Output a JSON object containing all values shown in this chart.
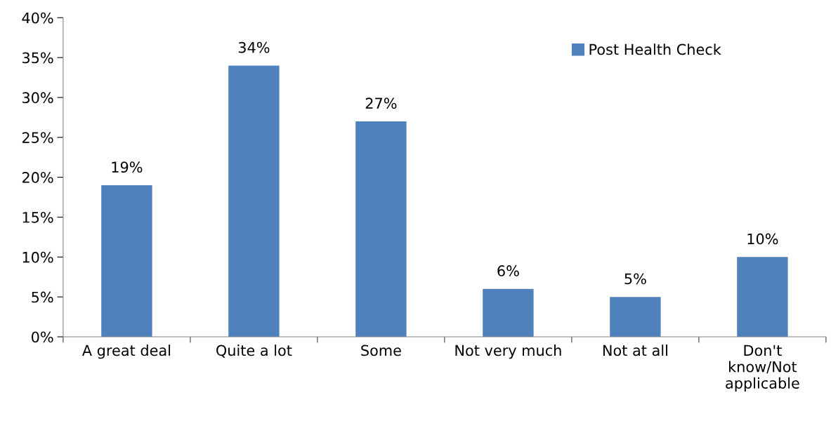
{
  "chart_data": {
    "type": "bar",
    "categories": [
      "A great deal",
      "Quite a lot",
      "Some",
      "Not very much",
      "Not at all",
      "Don't\nknow/Not\napplicable"
    ],
    "series": [
      {
        "name": "Post Health Check",
        "color": "#4f81bd",
        "values": [
          19,
          34,
          27,
          6,
          5,
          10
        ],
        "value_labels": [
          "19%",
          "34%",
          "27%",
          "6%",
          "5%",
          "10%"
        ]
      }
    ],
    "ylim": [
      0,
      40
    ],
    "yticks": [
      {
        "value": 0,
        "label": "0%"
      },
      {
        "value": 5,
        "label": "5%"
      },
      {
        "value": 10,
        "label": "10%"
      },
      {
        "value": 15,
        "label": "15%"
      },
      {
        "value": 20,
        "label": "20%"
      },
      {
        "value": 25,
        "label": "25%"
      },
      {
        "value": 30,
        "label": "30%"
      },
      {
        "value": 35,
        "label": "35%"
      },
      {
        "value": 40,
        "label": "40%"
      }
    ],
    "grid": false,
    "legend": "top right"
  }
}
